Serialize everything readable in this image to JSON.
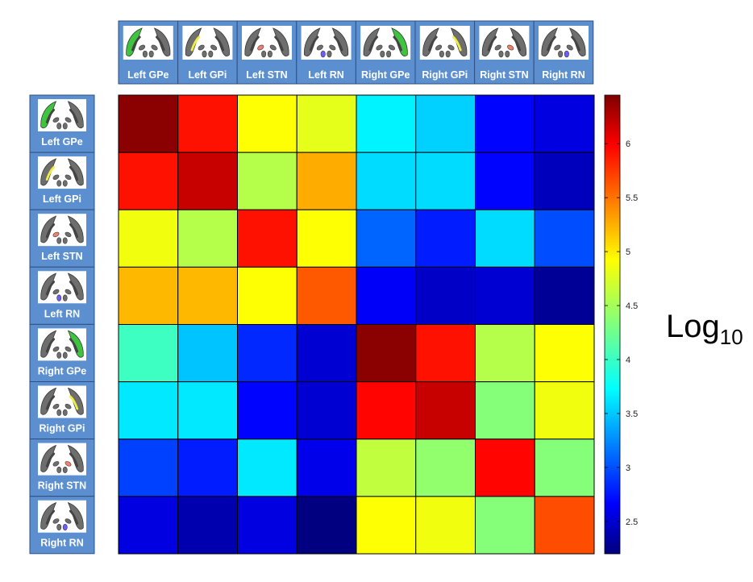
{
  "chart_data": {
    "type": "heatmap",
    "rows": [
      "Left GPe",
      "Left GPi",
      "Left STN",
      "Left RN",
      "Right GPe",
      "Right GPi",
      "Right STN",
      "Right RN"
    ],
    "columns": [
      "Left GPe",
      "Left GPi",
      "Left STN",
      "Left RN",
      "Right GPe",
      "Right GPi",
      "Right STN",
      "Right RN"
    ],
    "values": [
      [
        6.4,
        5.85,
        4.85,
        4.75,
        3.75,
        3.6,
        2.75,
        2.6
      ],
      [
        5.85,
        6.15,
        4.55,
        5.2,
        3.65,
        3.65,
        2.75,
        2.45
      ],
      [
        4.8,
        4.55,
        5.85,
        4.85,
        3.15,
        2.85,
        3.65,
        3.05
      ],
      [
        5.15,
        5.15,
        4.85,
        5.55,
        2.7,
        2.5,
        2.55,
        2.3
      ],
      [
        4.05,
        3.55,
        2.9,
        2.55,
        6.4,
        5.85,
        4.55,
        4.85
      ],
      [
        3.7,
        3.7,
        2.75,
        2.55,
        5.9,
        6.15,
        4.35,
        4.8
      ],
      [
        3.0,
        2.85,
        3.7,
        2.65,
        4.6,
        4.4,
        5.9,
        4.35
      ],
      [
        2.6,
        2.4,
        2.6,
        2.2,
        4.85,
        4.8,
        4.35,
        5.6
      ]
    ],
    "zlim": [
      2.2,
      6.45
    ],
    "colormap": "jet",
    "colorbar": {
      "ticks": [
        2.5,
        3,
        3.5,
        4,
        4.5,
        5,
        5.5,
        6
      ],
      "tick_labels": [
        "2.5",
        "3",
        "3.5",
        "4",
        "4.5",
        "5",
        "5.5",
        "6"
      ],
      "label_main": "Log",
      "label_sub": "10"
    },
    "highlight_colors": {
      "GPe": "#3fc43f",
      "GPi": "#eeee44",
      "STN": "#f08070",
      "RN": "#6a5cff"
    },
    "label_tile_color": "#5b8fd0",
    "grid": true
  }
}
